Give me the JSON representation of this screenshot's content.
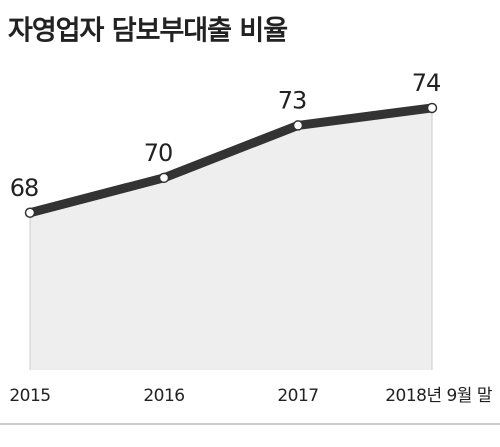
{
  "chart_data": {
    "type": "line",
    "title": "자영업자 담보부대출 비율",
    "categories": [
      "2015",
      "2016",
      "2017",
      "2018년 9월 말"
    ],
    "values": [
      68,
      70,
      73,
      74
    ],
    "color": "#333333",
    "area_color": "#eeeeee",
    "ylim": [
      59,
      76
    ]
  }
}
